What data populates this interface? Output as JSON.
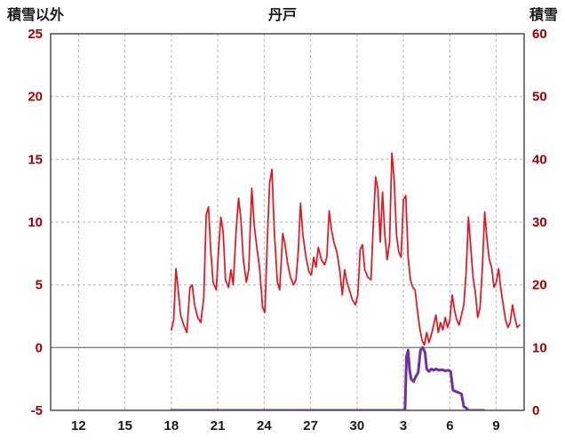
{
  "page": {
    "background": "#ffffff"
  },
  "chart_data": {
    "type": "line",
    "title": "丹戸",
    "grid": true,
    "legend": "none",
    "gridline_color": "#b3b3b3",
    "border_color": "#595959",
    "left_axis": {
      "label": "積雪以外",
      "min": -5,
      "max": 25,
      "tick_step": 5,
      "ticks": [
        25,
        20,
        15,
        10,
        5,
        0,
        -5
      ],
      "color": "#a00000"
    },
    "right_axis": {
      "label": "積雪",
      "min": 0,
      "max": 60,
      "tick_step": 10,
      "ticks": [
        60,
        50,
        40,
        30,
        20,
        10,
        0
      ],
      "color": "#a00000"
    },
    "x_axis": {
      "min": 10.2,
      "max": 40.8,
      "tick_color": "#1a1a1a",
      "ticks": [
        {
          "label": "12",
          "day": 12
        },
        {
          "label": "15",
          "day": 15
        },
        {
          "label": "18",
          "day": 18
        },
        {
          "label": "21",
          "day": 21
        },
        {
          "label": "24",
          "day": 24
        },
        {
          "label": "27",
          "day": 27
        },
        {
          "label": "30",
          "day": 30
        },
        {
          "label": "3",
          "day": 33
        },
        {
          "label": "6",
          "day": 36
        },
        {
          "label": "9",
          "day": 39
        }
      ]
    },
    "zero_line": {
      "value": 0,
      "axis": "left",
      "color": "#7f7f7f"
    },
    "series": [
      {
        "name": "積雪以外",
        "key": "non-snow",
        "axis": "left",
        "color": "#e8111d",
        "width": 1.7,
        "points": [
          [
            18.0,
            1.4
          ],
          [
            18.15,
            2.2
          ],
          [
            18.3,
            6.3
          ],
          [
            18.45,
            4.5
          ],
          [
            18.6,
            2.6
          ],
          [
            18.8,
            1.8
          ],
          [
            19.0,
            1.2
          ],
          [
            19.2,
            4.8
          ],
          [
            19.35,
            5.0
          ],
          [
            19.5,
            3.4
          ],
          [
            19.7,
            2.4
          ],
          [
            19.9,
            2.0
          ],
          [
            20.1,
            4.0
          ],
          [
            20.25,
            10.6
          ],
          [
            20.4,
            11.2
          ],
          [
            20.55,
            7.6
          ],
          [
            20.7,
            5.2
          ],
          [
            20.9,
            4.6
          ],
          [
            21.05,
            7.8
          ],
          [
            21.2,
            10.4
          ],
          [
            21.35,
            9.2
          ],
          [
            21.5,
            5.4
          ],
          [
            21.7,
            4.8
          ],
          [
            21.85,
            6.2
          ],
          [
            22.0,
            5.0
          ],
          [
            22.2,
            9.6
          ],
          [
            22.35,
            11.9
          ],
          [
            22.5,
            10.2
          ],
          [
            22.65,
            7.0
          ],
          [
            22.85,
            5.2
          ],
          [
            23.0,
            6.2
          ],
          [
            23.2,
            12.7
          ],
          [
            23.35,
            9.8
          ],
          [
            23.5,
            8.2
          ],
          [
            23.7,
            6.4
          ],
          [
            23.9,
            3.2
          ],
          [
            24.05,
            2.8
          ],
          [
            24.2,
            8.6
          ],
          [
            24.35,
            13.1
          ],
          [
            24.5,
            14.2
          ],
          [
            24.65,
            9.4
          ],
          [
            24.85,
            5.2
          ],
          [
            25.0,
            4.6
          ],
          [
            25.2,
            9.1
          ],
          [
            25.35,
            8.2
          ],
          [
            25.5,
            6.8
          ],
          [
            25.7,
            5.6
          ],
          [
            25.9,
            5.0
          ],
          [
            26.05,
            5.4
          ],
          [
            26.2,
            7.6
          ],
          [
            26.35,
            11.5
          ],
          [
            26.5,
            9.0
          ],
          [
            26.7,
            7.2
          ],
          [
            26.9,
            6.0
          ],
          [
            27.05,
            5.8
          ],
          [
            27.2,
            7.2
          ],
          [
            27.35,
            6.4
          ],
          [
            27.5,
            8.0
          ],
          [
            27.7,
            7.0
          ],
          [
            27.9,
            6.6
          ],
          [
            28.05,
            7.2
          ],
          [
            28.2,
            10.9
          ],
          [
            28.35,
            9.4
          ],
          [
            28.5,
            8.4
          ],
          [
            28.7,
            7.6
          ],
          [
            28.9,
            6.0
          ],
          [
            29.05,
            4.2
          ],
          [
            29.2,
            6.2
          ],
          [
            29.35,
            5.2
          ],
          [
            29.5,
            4.6
          ],
          [
            29.7,
            3.8
          ],
          [
            29.9,
            3.4
          ],
          [
            30.05,
            4.2
          ],
          [
            30.2,
            7.8
          ],
          [
            30.35,
            8.2
          ],
          [
            30.5,
            6.2
          ],
          [
            30.7,
            5.6
          ],
          [
            30.9,
            5.4
          ],
          [
            31.05,
            9.8
          ],
          [
            31.2,
            13.6
          ],
          [
            31.35,
            12.6
          ],
          [
            31.5,
            8.4
          ],
          [
            31.65,
            12.4
          ],
          [
            31.8,
            9.0
          ],
          [
            31.95,
            7.0
          ],
          [
            32.1,
            8.4
          ],
          [
            32.25,
            15.5
          ],
          [
            32.4,
            13.4
          ],
          [
            32.55,
            9.0
          ],
          [
            32.7,
            7.6
          ],
          [
            32.85,
            7.2
          ],
          [
            33.0,
            11.8
          ],
          [
            33.15,
            12.1
          ],
          [
            33.3,
            7.2
          ],
          [
            33.45,
            5.4
          ],
          [
            33.6,
            4.8
          ],
          [
            33.75,
            4.6
          ],
          [
            33.9,
            3.0
          ],
          [
            34.05,
            1.6
          ],
          [
            34.2,
            0.6
          ],
          [
            34.35,
            0.2
          ],
          [
            34.5,
            1.2
          ],
          [
            34.65,
            0.4
          ],
          [
            34.8,
            1.0
          ],
          [
            34.95,
            1.8
          ],
          [
            35.1,
            2.6
          ],
          [
            35.25,
            1.2
          ],
          [
            35.4,
            2.0
          ],
          [
            35.55,
            1.4
          ],
          [
            35.7,
            2.4
          ],
          [
            35.85,
            1.6
          ],
          [
            36.0,
            2.2
          ],
          [
            36.15,
            4.2
          ],
          [
            36.3,
            3.0
          ],
          [
            36.45,
            2.2
          ],
          [
            36.6,
            1.8
          ],
          [
            36.75,
            2.6
          ],
          [
            36.9,
            3.4
          ],
          [
            37.05,
            6.0
          ],
          [
            37.2,
            10.4
          ],
          [
            37.35,
            8.0
          ],
          [
            37.5,
            5.6
          ],
          [
            37.65,
            4.4
          ],
          [
            37.8,
            2.4
          ],
          [
            37.95,
            3.2
          ],
          [
            38.1,
            6.4
          ],
          [
            38.25,
            10.8
          ],
          [
            38.4,
            8.6
          ],
          [
            38.55,
            7.0
          ],
          [
            38.7,
            6.4
          ],
          [
            38.85,
            4.8
          ],
          [
            39.0,
            5.2
          ],
          [
            39.15,
            6.3
          ],
          [
            39.3,
            4.6
          ],
          [
            39.45,
            3.4
          ],
          [
            39.6,
            2.2
          ],
          [
            39.75,
            1.6
          ],
          [
            39.9,
            2.0
          ],
          [
            40.05,
            3.4
          ],
          [
            40.2,
            2.4
          ],
          [
            40.35,
            1.6
          ],
          [
            40.5,
            1.8
          ]
        ]
      },
      {
        "name": "積雪",
        "key": "snow",
        "axis": "right",
        "color": "#7030a0",
        "width": 3,
        "points": [
          [
            18.0,
            0.0
          ],
          [
            33.1,
            0.0
          ],
          [
            33.2,
            8.6
          ],
          [
            33.3,
            9.6
          ],
          [
            33.4,
            6.4
          ],
          [
            33.5,
            5.0
          ],
          [
            33.65,
            4.6
          ],
          [
            33.8,
            5.4
          ],
          [
            33.95,
            6.0
          ],
          [
            34.1,
            9.6
          ],
          [
            34.25,
            10.0
          ],
          [
            34.4,
            9.2
          ],
          [
            34.5,
            6.6
          ],
          [
            34.65,
            6.2
          ],
          [
            34.8,
            6.6
          ],
          [
            34.95,
            6.4
          ],
          [
            35.1,
            6.6
          ],
          [
            35.3,
            6.4
          ],
          [
            35.5,
            6.5
          ],
          [
            35.7,
            6.3
          ],
          [
            35.9,
            6.4
          ],
          [
            36.05,
            6.2
          ],
          [
            36.2,
            3.2
          ],
          [
            36.4,
            3.0
          ],
          [
            36.6,
            2.8
          ],
          [
            36.75,
            2.6
          ],
          [
            36.9,
            0.6
          ],
          [
            37.05,
            0.4
          ],
          [
            37.2,
            0.0
          ],
          [
            38.2,
            0.0
          ]
        ]
      }
    ]
  }
}
